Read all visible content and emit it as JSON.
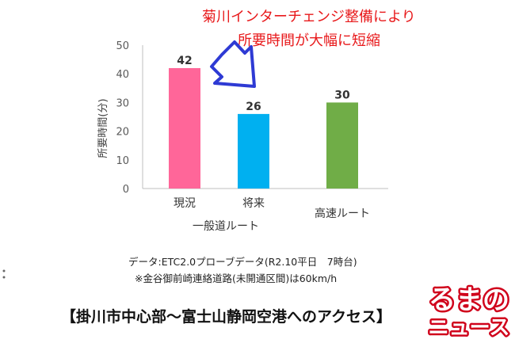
{
  "chart_data": {
    "type": "bar",
    "categories": [
      "現況",
      "将来",
      "高速ルート"
    ],
    "values": [
      42,
      26,
      30
    ],
    "colors": [
      "#ff6699",
      "#00b0f0",
      "#70ad47"
    ],
    "group_label": "一般道ルート",
    "ylabel": "所要時間(分)",
    "ylim": [
      0,
      50
    ],
    "yticks": [
      0,
      10,
      20,
      30,
      40,
      50
    ],
    "grid": false,
    "annotation": [
      "菊川インターチェンジ整備により",
      "所要時間が大幅に短縮"
    ],
    "annotation_color": "#e8191b",
    "arrow_color": "#2e3ad4"
  },
  "notes": {
    "line1": "データ:ETC2.0プローブデータ(R2.10平日　7時台)",
    "line2": "※金谷御前崎連絡道路(未開通区間)は60km/h"
  },
  "caption": "【掛川市中心部～富士山静岡空港へのアクセス】",
  "logo": {
    "line1": "るまの",
    "line2": "ニュース",
    "color": "#d0021b"
  }
}
